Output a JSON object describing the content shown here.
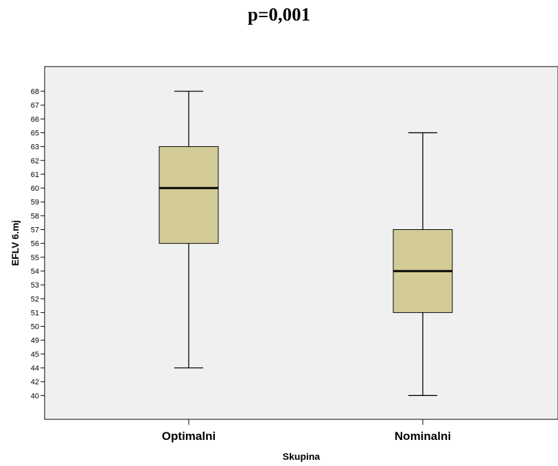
{
  "chart_data": {
    "type": "boxplot",
    "title": "p=0,001",
    "xlabel": "Skupina",
    "ylabel": "EFLV 6.mj",
    "y_ticks": [
      "68",
      "67",
      "66",
      "65",
      "63",
      "62",
      "61",
      "60",
      "59",
      "58",
      "57",
      "56",
      "55",
      "54",
      "53",
      "52",
      "51",
      "50",
      "49",
      "45",
      "44",
      "42",
      "40"
    ],
    "categories": [
      "Optimalni",
      "Nominalni"
    ],
    "boxes": [
      {
        "category": "Optimalni",
        "whisker_high": "68",
        "q3": "63",
        "median": "60",
        "q1": "56",
        "whisker_low": "44"
      },
      {
        "category": "Nominalni",
        "whisker_high": "65",
        "q3": "57",
        "median": "54",
        "q1": "51",
        "whisker_low": "40"
      }
    ],
    "grid": false,
    "colors": {
      "box_fill": "#d4cc96",
      "plot_background": "#f0f0f0",
      "line": "#000000"
    }
  }
}
